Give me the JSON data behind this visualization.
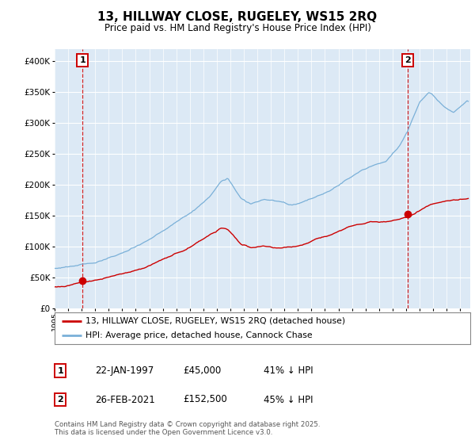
{
  "title": "13, HILLWAY CLOSE, RUGELEY, WS15 2RQ",
  "subtitle": "Price paid vs. HM Land Registry's House Price Index (HPI)",
  "legend_line1": "13, HILLWAY CLOSE, RUGELEY, WS15 2RQ (detached house)",
  "legend_line2": "HPI: Average price, detached house, Cannock Chase",
  "table_rows": [
    [
      "1",
      "22-JAN-1997",
      "£45,000",
      "41% ↓ HPI"
    ],
    [
      "2",
      "26-FEB-2021",
      "£152,500",
      "45% ↓ HPI"
    ]
  ],
  "footnote": "Contains HM Land Registry data © Crown copyright and database right 2025.\nThis data is licensed under the Open Government Licence v3.0.",
  "sale1_date": 1997.07,
  "sale1_price": 45000,
  "sale2_date": 2021.15,
  "sale2_price": 152500,
  "hpi_color": "#7ab0d8",
  "sale_color": "#cc0000",
  "plot_bg_color": "#dce9f5",
  "ylim": [
    0,
    420000
  ],
  "xlim_start": 1995.0,
  "xlim_end": 2025.75,
  "yticks": [
    0,
    50000,
    100000,
    150000,
    200000,
    250000,
    300000,
    350000,
    400000
  ]
}
